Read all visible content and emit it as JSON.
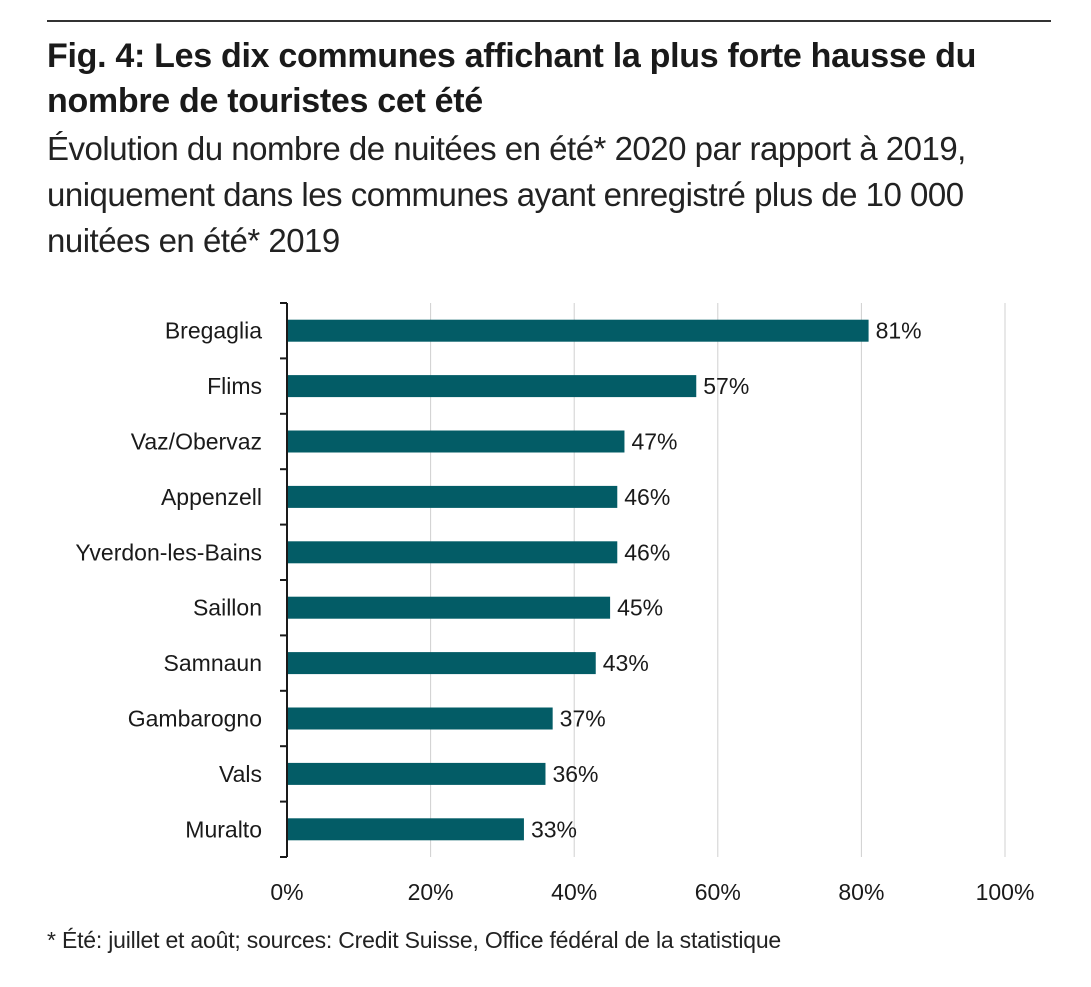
{
  "figure": {
    "title": "Fig. 4: Les dix communes affichant la plus forte hausse du nombre de touristes cet été",
    "subtitle": "Évolution du nombre de nuitées en été* 2020 par rapport à 2019, uniquement dans les communes ayant enregistré plus de 10 000 nuitées en été* 2019",
    "footnote": "* Été: juillet et août; sources: Credit Suisse, Office fédéral de la statistique"
  },
  "colors": {
    "bar": "#035c66",
    "grid": "#d0d0d0",
    "axis": "#1a1a1a"
  },
  "chart_data": {
    "type": "bar",
    "orientation": "horizontal",
    "title": "Fig. 4: Les dix communes affichant la plus forte hausse du nombre de touristes cet été",
    "subtitle": "Évolution du nombre de nuitées en été* 2020 par rapport à 2019, uniquement dans les communes ayant enregistré plus de 10 000 nuitées en été* 2019",
    "categories": [
      "Bregaglia",
      "Flims",
      "Vaz/Obervaz",
      "Appenzell",
      "Yverdon-les-Bains",
      "Saillon",
      "Samnaun",
      "Gambarogno",
      "Vals",
      "Muralto"
    ],
    "values": [
      81,
      57,
      47,
      46,
      46,
      45,
      43,
      37,
      36,
      33
    ],
    "value_labels": [
      "81%",
      "57%",
      "47%",
      "46%",
      "46%",
      "45%",
      "43%",
      "37%",
      "36%",
      "33%"
    ],
    "xlabel": "",
    "ylabel": "",
    "xlim": [
      0,
      100
    ],
    "xticks": [
      0,
      20,
      40,
      60,
      80,
      100
    ],
    "xtick_labels": [
      "0%",
      "20%",
      "40%",
      "60%",
      "80%",
      "100%"
    ],
    "grid": "vertical",
    "legend": "none"
  }
}
